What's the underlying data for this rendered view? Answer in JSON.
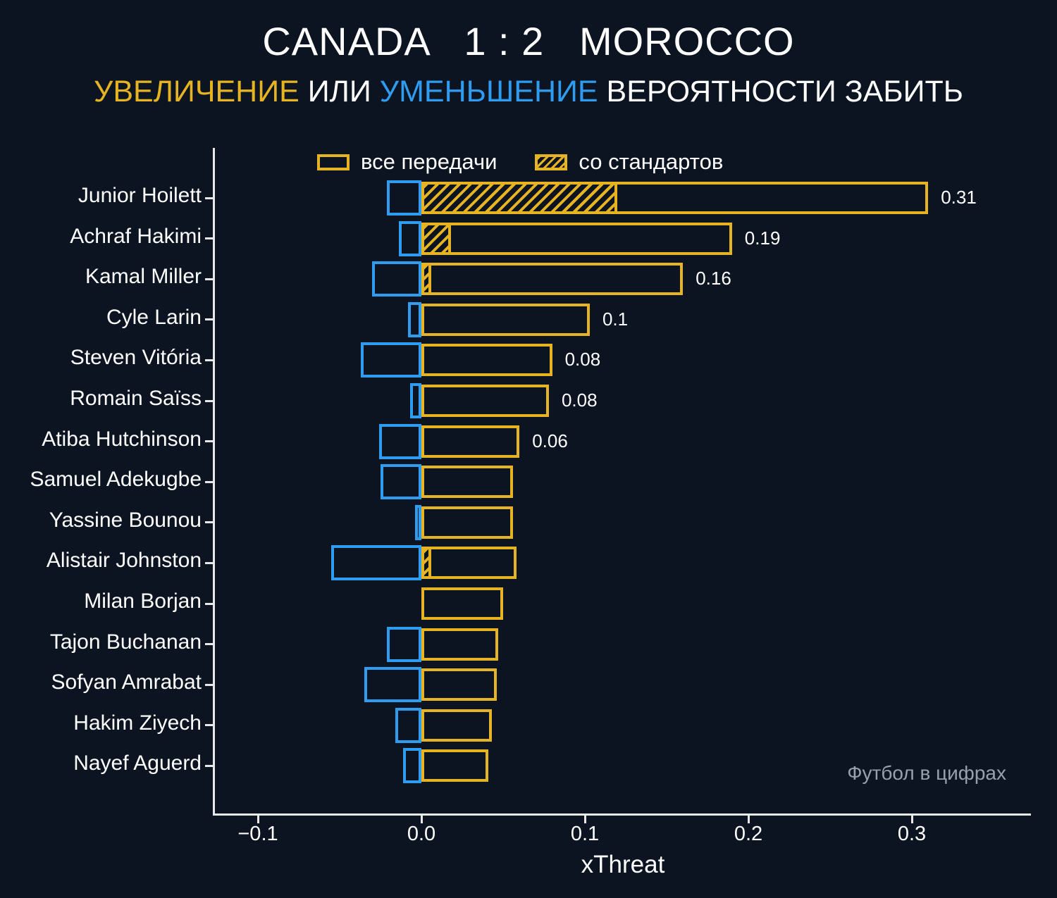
{
  "header": {
    "title": "CANADA   1 : 2   MOROCCO",
    "subtitle_parts": [
      {
        "text": "УВЕЛИЧЕНИЕ",
        "color": "#e6b422"
      },
      {
        "text": " ИЛИ ",
        "color": "#ffffff"
      },
      {
        "text": "УМЕНЬШЕНИЕ",
        "color": "#2f9cf0"
      },
      {
        "text": " ВЕРОЯТНОСТИ ЗАБИТЬ",
        "color": "#ffffff"
      }
    ]
  },
  "legend": {
    "all_passes": "все передачи",
    "set_pieces": "со стандартов"
  },
  "watermark": "Футбол в цифрах",
  "colors": {
    "positive": "#e6b422",
    "negative": "#2f9cf0",
    "background": "#0b1420",
    "axis": "#e8e8e8",
    "text": "#ffffff",
    "watermark": "#98a0ab"
  },
  "chart_data": {
    "type": "bar",
    "orientation": "horizontal",
    "title": "CANADA 1 : 2 MOROCCO",
    "subtitle": "УВЕЛИЧЕНИЕ ИЛИ УМЕНЬШЕНИЕ ВЕРОЯТНОСТИ ЗАБИТЬ",
    "xlabel": "xThreat",
    "xlim": [
      -0.126,
      0.373
    ],
    "grid": false,
    "legend_position": "top",
    "xticks": [
      "−0.1",
      "0.0",
      "0.1",
      "0.2",
      "0.3"
    ],
    "xtick_values": [
      -0.1,
      0.0,
      0.1,
      0.2,
      0.3
    ],
    "categories": [
      "Junior Hoilett",
      "Achraf Hakimi",
      "Kamal Miller",
      "Cyle Larin",
      "Steven Vitória",
      "Romain Saïss",
      "Atiba Hutchinson",
      "Samuel Adekugbe",
      "Yassine Bounou",
      "Alistair Johnston",
      "Milan Borjan",
      "Tajon Buchanan",
      "Sofyan Amrabat",
      "Hakim Ziyech",
      "Nayef Aguerd"
    ],
    "series": [
      {
        "name": "все передачи (увеличение)",
        "key": "positive",
        "values": [
          0.31,
          0.19,
          0.16,
          0.103,
          0.08,
          0.078,
          0.06,
          0.056,
          0.056,
          0.058,
          0.05,
          0.047,
          0.046,
          0.043,
          0.041
        ]
      },
      {
        "name": "со стандартов",
        "key": "set_pieces",
        "values": [
          0.12,
          0.018,
          0.006,
          0,
          0,
          0,
          0,
          0,
          0,
          0.006,
          0,
          0,
          0,
          0,
          0
        ]
      },
      {
        "name": "уменьшение",
        "key": "negative",
        "values": [
          -0.021,
          -0.014,
          -0.03,
          -0.008,
          -0.037,
          -0.007,
          -0.026,
          -0.025,
          -0.004,
          -0.055,
          0,
          -0.021,
          -0.035,
          -0.016,
          -0.011
        ]
      }
    ],
    "value_labels": [
      "0.31",
      "0.19",
      "0.16",
      "0.1",
      "0.08",
      "0.08",
      "0.06",
      "",
      "",
      "",
      "",
      "",
      "",
      "",
      ""
    ]
  }
}
